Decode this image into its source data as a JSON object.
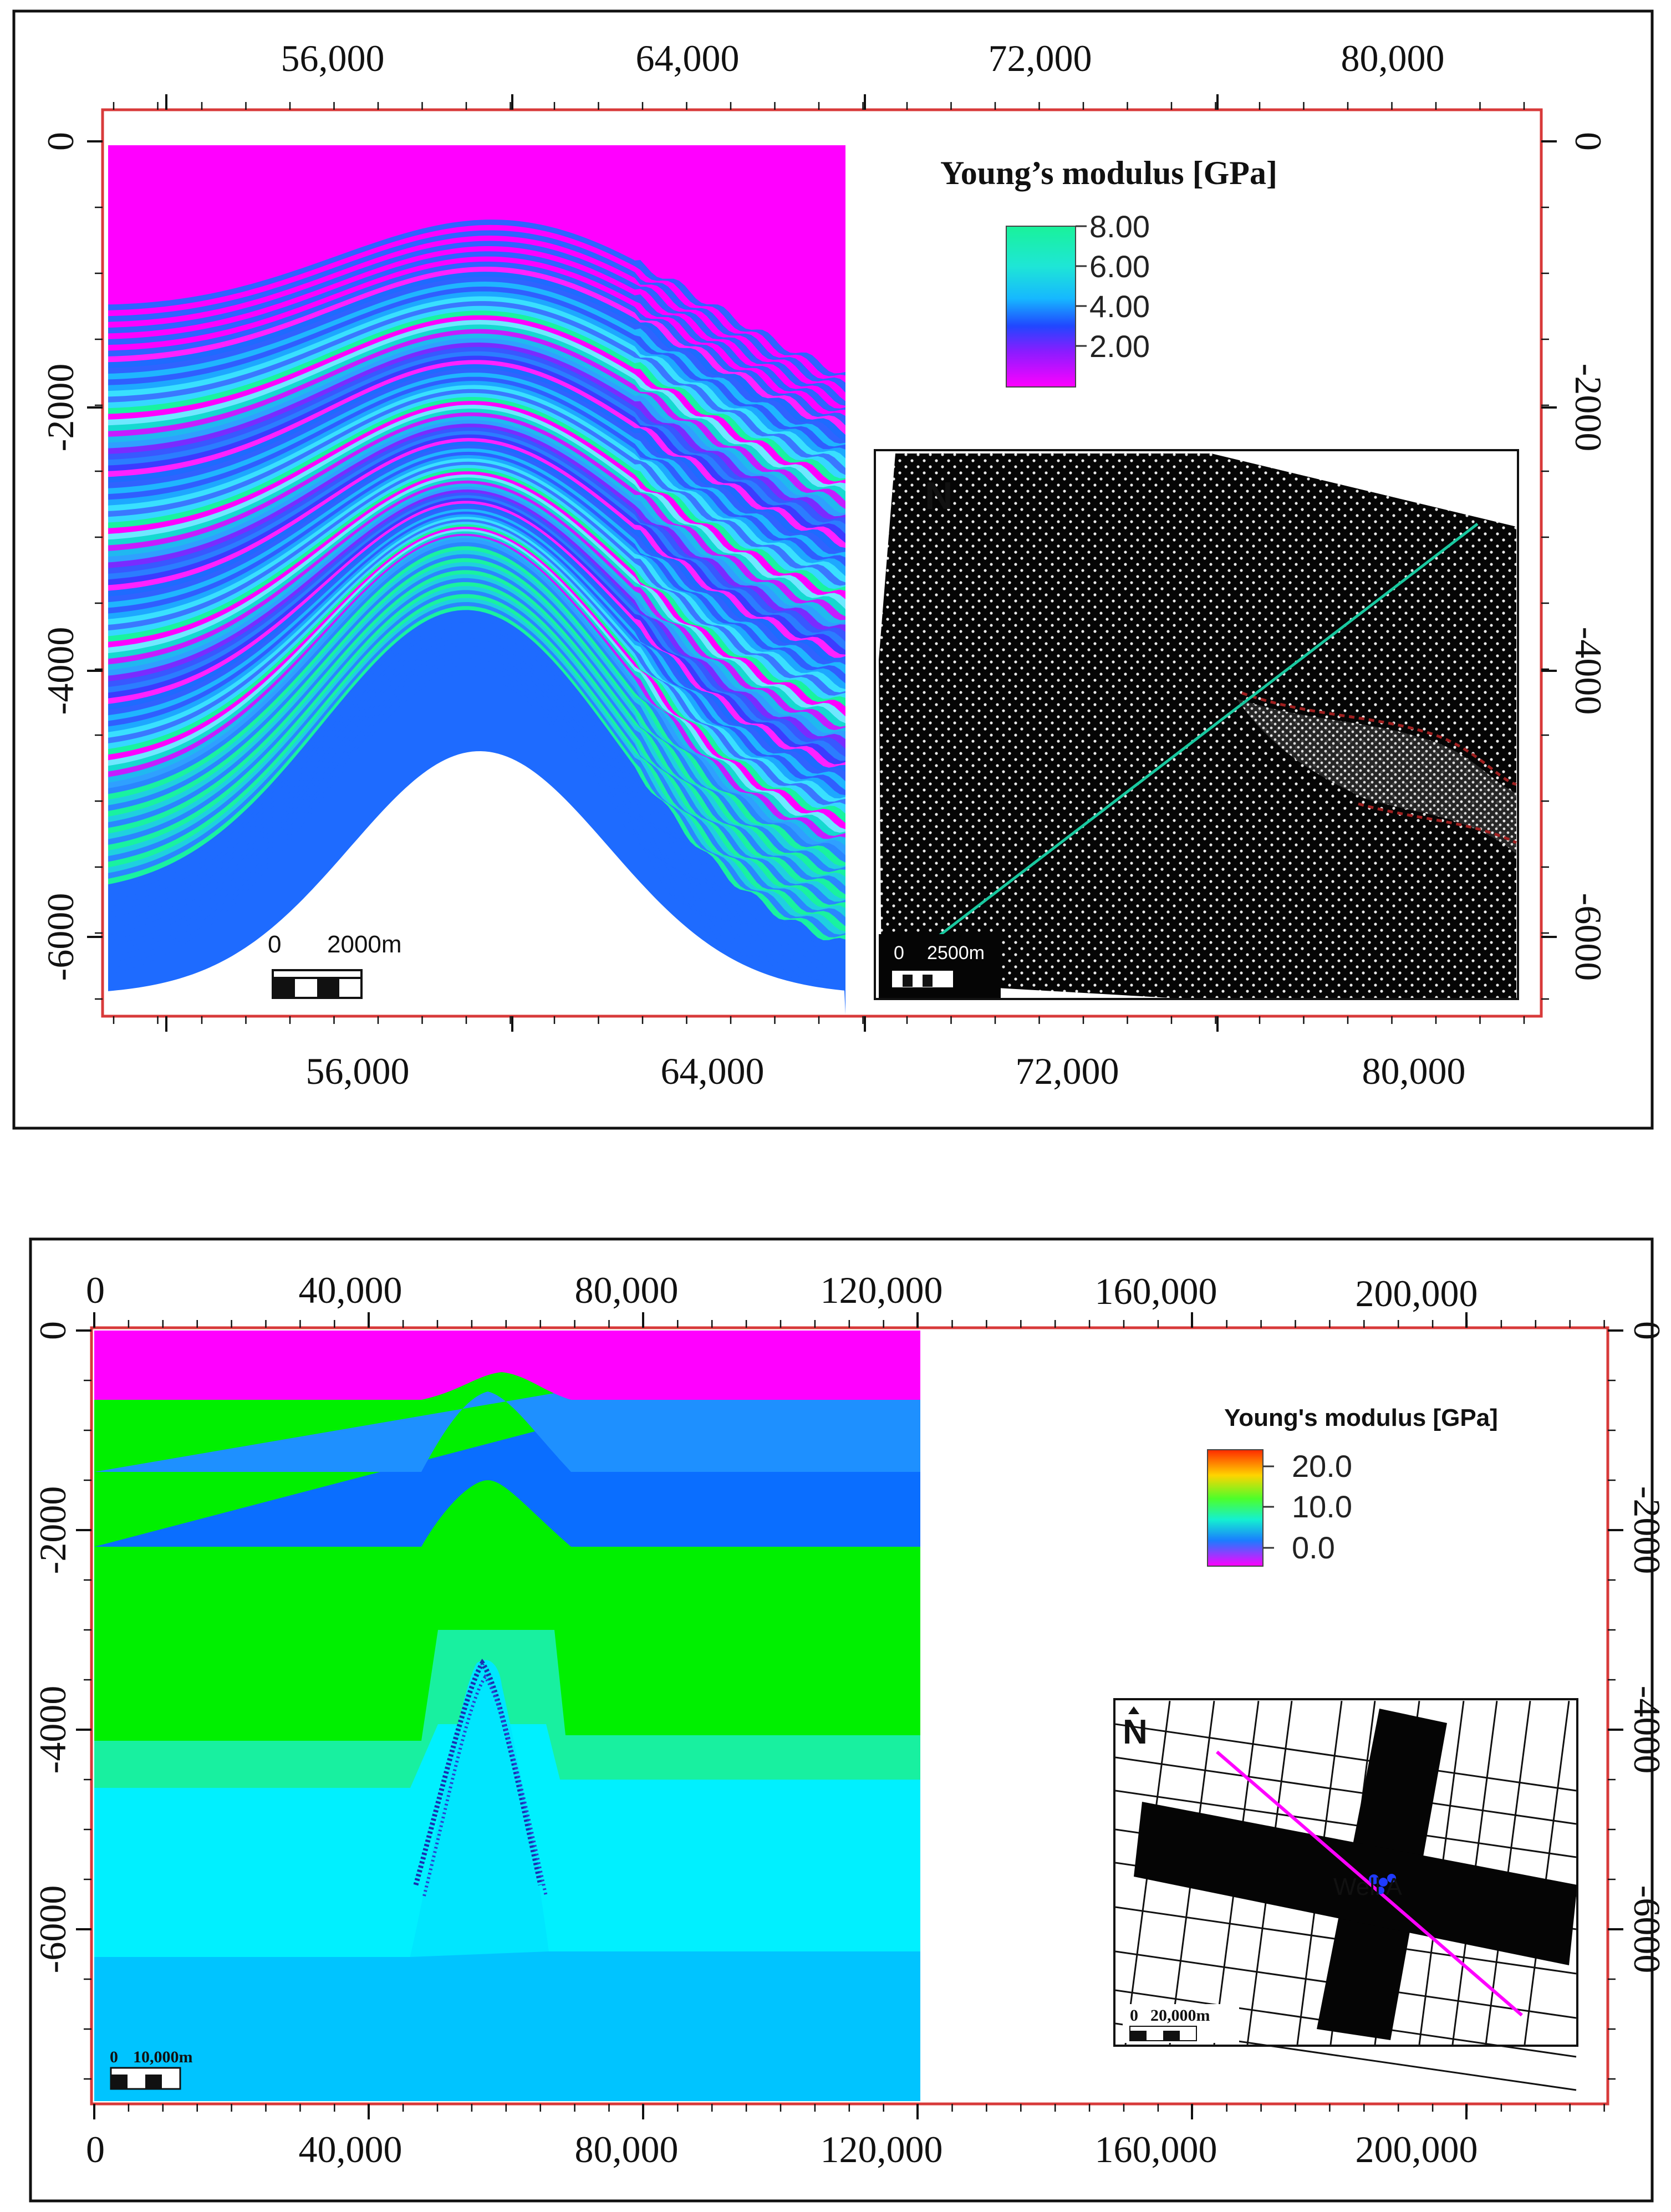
{
  "panel_a": {
    "x_ticks_top": [
      "56,000",
      "64,000",
      "72,000",
      "80,000"
    ],
    "x_ticks_bottom": [
      "56,000",
      "64,000",
      "72,000",
      "80,000"
    ],
    "y_ticks_left": [
      "0",
      "-2000",
      "-4000",
      "-6000"
    ],
    "y_ticks_right": [
      "0",
      "-2000",
      "-4000",
      "-6000"
    ],
    "colorbar": {
      "title": "Young’s modulus [GPa]",
      "labels": [
        "8.00",
        "6.00",
        "4.00",
        "2.00"
      ]
    },
    "scale_bar": {
      "zero": "0",
      "length": "2000m"
    },
    "inset": {
      "north": "N",
      "scale_zero": "0",
      "scale_length": "2500m"
    },
    "colors": {
      "frame": "#d83a3a",
      "low": "#ff00ff",
      "mid": "#1e6bff",
      "high": "#19f2a0"
    }
  },
  "panel_b": {
    "x_ticks_top": [
      "0",
      "40,000",
      "80,000",
      "120,000",
      "160,000",
      "200,000"
    ],
    "x_ticks_bottom": [
      "0",
      "40,000",
      "80,000",
      "120,000",
      "160,000",
      "200,000"
    ],
    "y_ticks_left": [
      "0",
      "-2000",
      "-4000",
      "-6000"
    ],
    "y_ticks_right": [
      "0",
      "-2000",
      "-4000",
      "-6000"
    ],
    "colorbar": {
      "title": "Young's modulus [GPa]",
      "labels": [
        "20.0",
        "10.0",
        "0.0"
      ]
    },
    "scale_bar": {
      "zero": "0",
      "length": "10,000m"
    },
    "inset": {
      "north": "N",
      "scale_zero": "0",
      "scale_length": "20,000m",
      "well_label": "Well A"
    },
    "colors": {
      "frame": "#d83a3a",
      "well_line": "#ff00ff",
      "well": "#1f3bff"
    }
  }
}
